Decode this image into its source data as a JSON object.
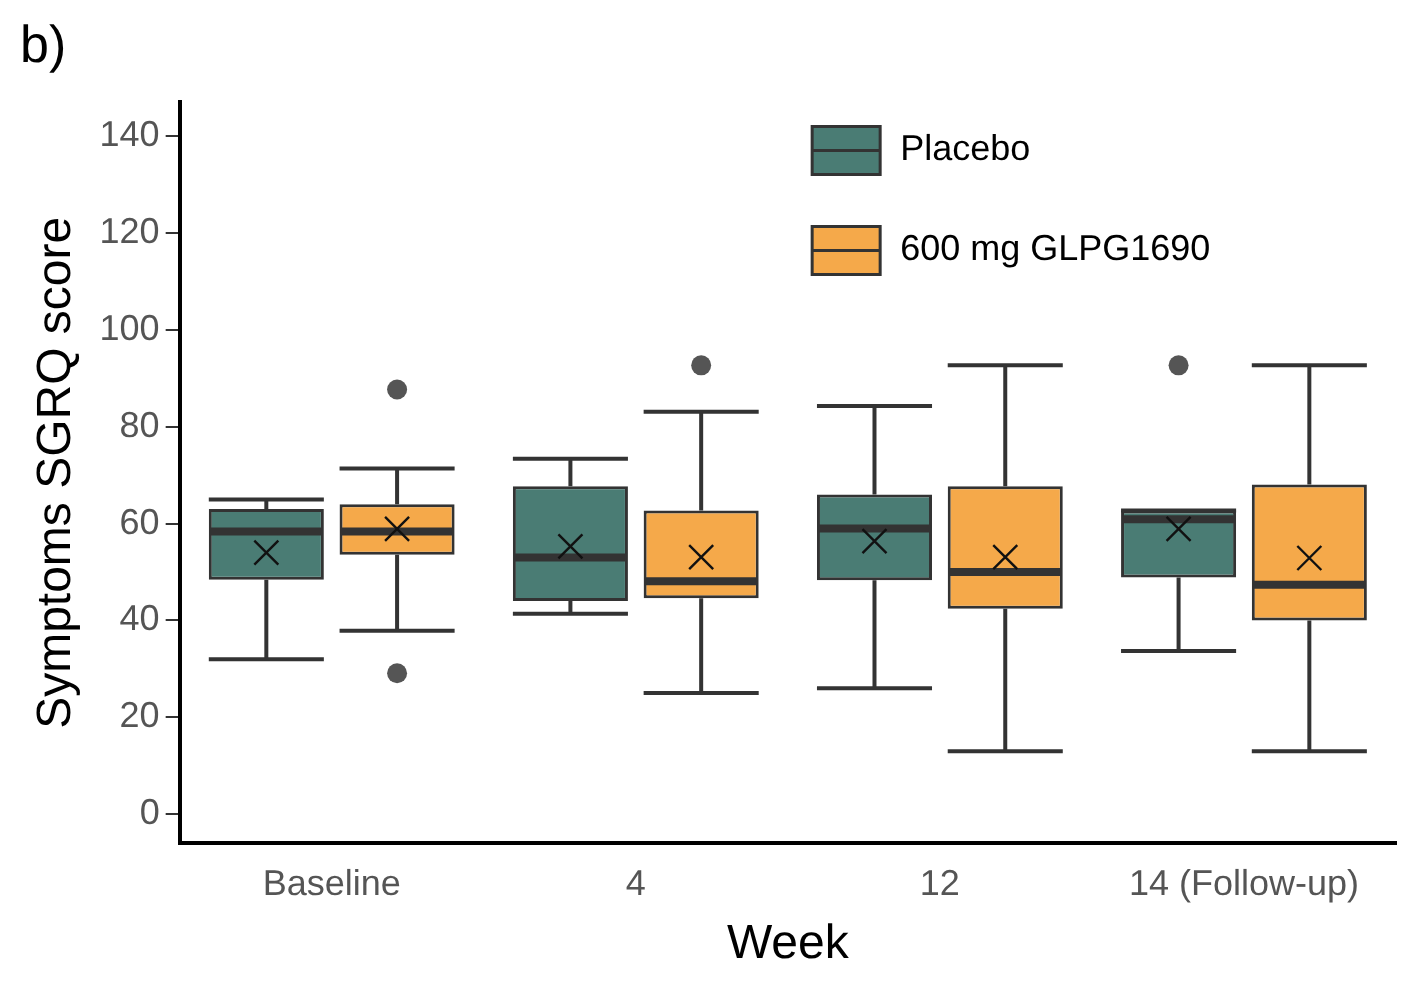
{
  "chart_data": {
    "type": "box",
    "title": "b)",
    "xlabel": "Week",
    "ylabel": "Symptoms SGRQ score",
    "categories": [
      "Baseline",
      "4",
      "12",
      "14 (Follow-up)"
    ],
    "ylim": [
      -6,
      147
    ],
    "yticks": [
      0,
      20,
      40,
      60,
      80,
      100,
      120,
      140
    ],
    "grid": false,
    "legend": "top right",
    "marker": "cross",
    "series": [
      {
        "name": "Placebo",
        "color": "#4a7c74",
        "boxes": [
          {
            "low": 32,
            "q1": 48.4,
            "median": 58.4,
            "q3": 63,
            "high": 65,
            "mean": 54
          },
          {
            "low": 41.4,
            "q1": 44,
            "median": 53,
            "q3": 67.7,
            "high": 73.4,
            "mean": 55.3
          },
          {
            "low": 26,
            "q1": 48.3,
            "median": 59,
            "q3": 66,
            "high": 84.3,
            "mean": 56.4
          },
          {
            "low": 33.7,
            "q1": 48.9,
            "median": 60.9,
            "q3": 62.7,
            "high": 62.7,
            "mean": 58.9,
            "outliers": [
              92.7
            ]
          }
        ]
      },
      {
        "name": "600 mg GLPG1690",
        "color": "#f5a94a",
        "boxes": [
          {
            "low": 37.9,
            "q1": 53.6,
            "median": 58.4,
            "q3": 64,
            "high": 71.4,
            "mean": 58.9,
            "outliers": [
              87.7,
              29.1
            ]
          },
          {
            "low": 25,
            "q1": 44.6,
            "median": 48.1,
            "q3": 62.7,
            "high": 83.1,
            "mean": 53.1,
            "outliers": [
              92.7
            ]
          },
          {
            "low": 13,
            "q1": 42.4,
            "median": 50,
            "q3": 67.7,
            "high": 92.7,
            "mean": 53.1
          },
          {
            "low": 13,
            "q1": 40,
            "median": 47.4,
            "q3": 68.1,
            "high": 92.7,
            "mean": 52.9
          }
        ]
      }
    ]
  }
}
